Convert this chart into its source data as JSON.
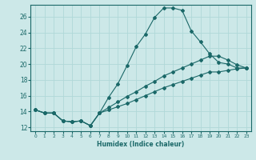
{
  "xlabel": "Humidex (Indice chaleur)",
  "background_color": "#cce8e8",
  "grid_color": "#b0d8d8",
  "line_color": "#1a6868",
  "xlim": [
    -0.5,
    23.5
  ],
  "ylim": [
    11.5,
    27.5
  ],
  "xticks": [
    0,
    1,
    2,
    3,
    4,
    5,
    6,
    7,
    8,
    9,
    10,
    11,
    12,
    13,
    14,
    15,
    16,
    17,
    18,
    19,
    20,
    21,
    22,
    23
  ],
  "yticks": [
    12,
    14,
    16,
    18,
    20,
    22,
    24,
    26
  ],
  "line1_x": [
    0,
    1,
    2,
    3,
    4,
    5,
    6,
    7,
    8,
    9,
    10,
    11,
    12,
    13,
    14,
    15,
    16,
    17,
    18,
    19,
    20,
    21,
    22,
    23
  ],
  "line1_y": [
    14.2,
    13.8,
    13.8,
    12.8,
    12.7,
    12.8,
    12.2,
    13.8,
    15.8,
    17.5,
    19.8,
    22.2,
    23.8,
    25.9,
    27.1,
    27.1,
    26.8,
    24.2,
    22.8,
    21.3,
    20.2,
    20.0,
    19.5,
    19.5
  ],
  "line2_x": [
    0,
    1,
    2,
    3,
    4,
    5,
    6,
    7,
    8,
    9,
    10,
    11,
    12,
    13,
    14,
    15,
    16,
    17,
    18,
    19,
    20,
    21,
    22,
    23
  ],
  "line2_y": [
    14.2,
    13.8,
    13.8,
    12.8,
    12.7,
    12.8,
    12.2,
    13.8,
    14.5,
    15.2,
    15.9,
    16.5,
    17.2,
    17.8,
    18.5,
    19.0,
    19.5,
    20.0,
    20.5,
    21.0,
    21.0,
    20.5,
    19.9,
    19.5
  ],
  "line3_x": [
    0,
    1,
    2,
    3,
    4,
    5,
    6,
    7,
    8,
    9,
    10,
    11,
    12,
    13,
    14,
    15,
    16,
    17,
    18,
    19,
    20,
    21,
    22,
    23
  ],
  "line3_y": [
    14.2,
    13.8,
    13.8,
    12.8,
    12.7,
    12.8,
    12.2,
    13.8,
    14.2,
    14.6,
    15.0,
    15.5,
    16.0,
    16.5,
    17.0,
    17.4,
    17.8,
    18.2,
    18.6,
    19.0,
    19.0,
    19.2,
    19.4,
    19.5
  ]
}
